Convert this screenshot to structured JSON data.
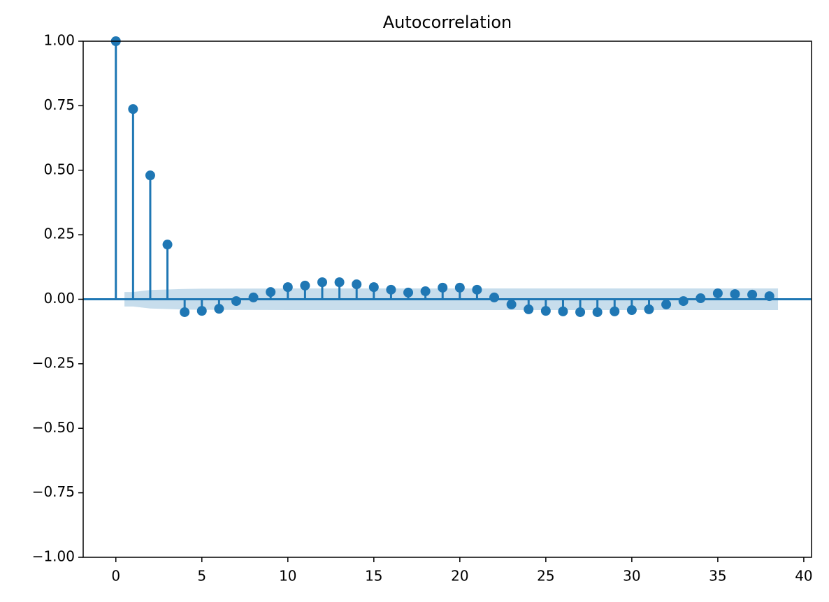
{
  "chart_data": {
    "type": "stem",
    "title": "Autocorrelation",
    "color": "#1f77b4",
    "band_color": "#1f77b4",
    "x": [
      0,
      1,
      2,
      3,
      4,
      5,
      6,
      7,
      8,
      9,
      10,
      11,
      12,
      13,
      14,
      15,
      16,
      17,
      18,
      19,
      20,
      21,
      22,
      23,
      24,
      25,
      26,
      27,
      28,
      29,
      30,
      31,
      32,
      33,
      34,
      35,
      36,
      37,
      38
    ],
    "values": [
      1.0,
      0.737,
      0.48,
      0.212,
      -0.05,
      -0.045,
      -0.037,
      -0.007,
      0.007,
      0.028,
      0.047,
      0.053,
      0.066,
      0.066,
      0.058,
      0.047,
      0.037,
      0.026,
      0.031,
      0.045,
      0.045,
      0.037,
      0.007,
      -0.02,
      -0.039,
      -0.045,
      -0.047,
      -0.05,
      -0.05,
      -0.047,
      -0.042,
      -0.039,
      -0.02,
      -0.007,
      0.004,
      0.023,
      0.02,
      0.018,
      0.012
    ],
    "confidence_band": {
      "x": [
        0.5,
        1,
        2,
        3,
        4,
        5,
        10,
        20,
        30,
        38.5
      ],
      "upper": [
        0.028,
        0.028,
        0.036,
        0.038,
        0.04,
        0.041,
        0.042,
        0.042,
        0.042,
        0.042
      ],
      "lower": [
        -0.028,
        -0.028,
        -0.036,
        -0.038,
        -0.04,
        -0.041,
        -0.042,
        -0.042,
        -0.042,
        -0.042
      ]
    },
    "xlim": [
      -1.9,
      40.45
    ],
    "ylim": [
      -1.0,
      1.0
    ],
    "xticks": [
      0,
      5,
      10,
      15,
      20,
      25,
      30,
      35,
      40
    ],
    "yticks": [
      {
        "value": -1.0,
        "label": "−1.00"
      },
      {
        "value": -0.75,
        "label": "−0.75"
      },
      {
        "value": -0.5,
        "label": "−0.50"
      },
      {
        "value": -0.25,
        "label": "−0.25"
      },
      {
        "value": 0.0,
        "label": "0.00"
      },
      {
        "value": 0.25,
        "label": "0.25"
      },
      {
        "value": 0.5,
        "label": "0.50"
      },
      {
        "value": 0.75,
        "label": "0.75"
      },
      {
        "value": 1.0,
        "label": "1.00"
      }
    ],
    "grid": false
  }
}
